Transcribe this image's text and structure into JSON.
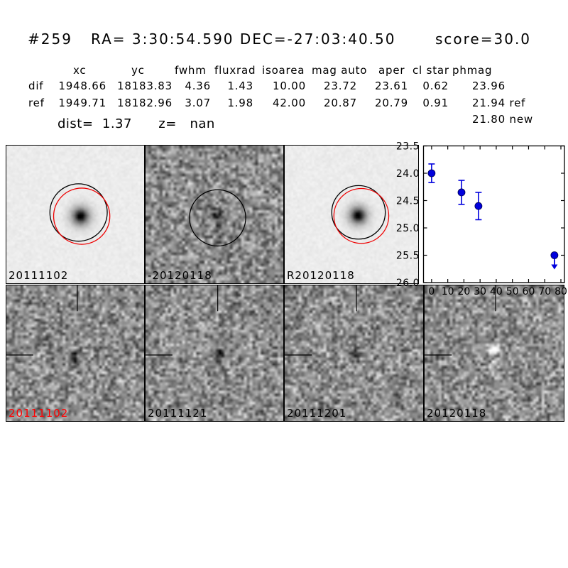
{
  "header": {
    "id": "#259",
    "coordinates": "RA= 3:30:54.590 DEC=-27:03:40.50",
    "score": "score=30.0"
  },
  "table": {
    "columns": [
      "xc",
      "yc",
      "fwhm",
      "fluxrad",
      "isoarea",
      "mag auto",
      "aper",
      "cl star",
      "phmag"
    ],
    "rows": [
      {
        "label": "dif",
        "xc": "1948.66",
        "yc": "18183.83",
        "fwhm": "4.36",
        "fluxrad": "1.43",
        "isoarea": "10.00",
        "mag_auto": "23.72",
        "aper": "23.61",
        "cl_star": "0.62",
        "phmag": "23.96"
      },
      {
        "label": "ref",
        "xc": "1949.71",
        "yc": "18182.96",
        "fwhm": "3.07",
        "fluxrad": "1.98",
        "isoarea": "42.00",
        "mag_auto": "20.87",
        "aper": "20.79",
        "cl_star": "0.91",
        "phmag": "21.94 ref"
      }
    ],
    "phmag_extra": "21.80 new",
    "dist_line": "dist=  1.37      z=   nan"
  },
  "stamps": {
    "top": [
      {
        "label": "20111102",
        "label_color": "#000000",
        "kind": "new image",
        "has_black_circle": true,
        "has_red_circle": true
      },
      {
        "label": "-20120118",
        "label_color": "#000000",
        "kind": "difference image",
        "has_black_circle": true,
        "has_red_circle": false
      },
      {
        "label": "R20120118",
        "label_color": "#000000",
        "kind": "reference image",
        "has_black_circle": true,
        "has_red_circle": true
      }
    ],
    "bottom": [
      {
        "label": "20111102",
        "label_color": "#ff0000"
      },
      {
        "label": "20111121",
        "label_color": "#000000"
      },
      {
        "label": "20111201",
        "label_color": "#000000"
      },
      {
        "label": "20120118",
        "label_color": "#000000"
      }
    ],
    "circle_colors": {
      "aperture": "#000000",
      "reference": "#ee0000"
    }
  },
  "chart_data": {
    "type": "scatter",
    "title": "",
    "xlabel": "",
    "ylabel": "",
    "x": [
      0,
      18.5,
      29,
      76
    ],
    "y": [
      24.0,
      24.35,
      24.6,
      25.5
    ],
    "yerr": [
      0.17,
      0.22,
      0.25,
      0
    ],
    "upper_limit": [
      false,
      false,
      false,
      true
    ],
    "xticks": [
      0,
      10,
      20,
      30,
      40,
      50,
      60,
      70,
      80
    ],
    "yticks": [
      23.5,
      24.0,
      24.5,
      25.0,
      25.5,
      26.0
    ],
    "xlim": [
      -5,
      82.2
    ],
    "ylim": [
      23.5,
      26.0
    ],
    "y_axis_inverted_magnitudes": true,
    "grid": false,
    "legend": "none",
    "marker_color": "#0000dd",
    "arrow_meaning": "upper limit"
  }
}
